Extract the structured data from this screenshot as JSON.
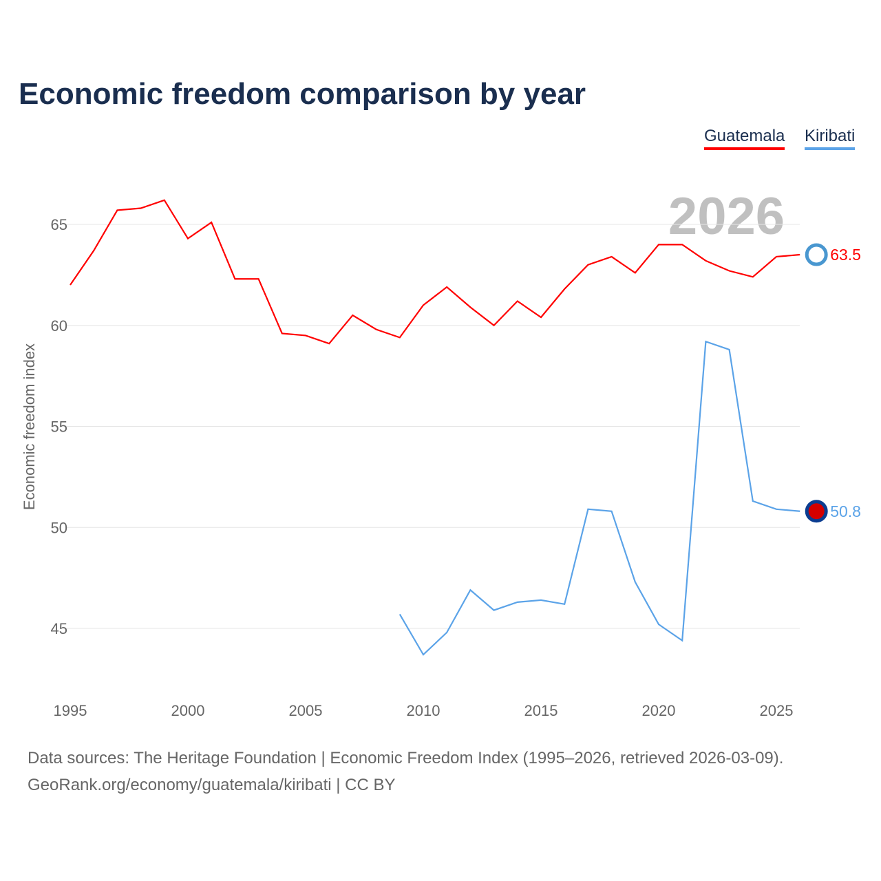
{
  "title": "Economic freedom comparison by year",
  "year_watermark": "2026",
  "legend": [
    {
      "label": "Guatemala",
      "color": "#ff0000"
    },
    {
      "label": "Kiribati",
      "color": "#5ba3e8"
    }
  ],
  "source_line1": "Data sources: The Heritage Foundation | Economic Freedom Index (1995–2026, retrieved 2026-03-09).",
  "source_line2": "GeoRank.org/economy/guatemala/kiribati | CC BY",
  "chart_data": {
    "type": "line",
    "title": "Economic freedom comparison by year",
    "xlabel": "",
    "ylabel": "Economic freedom index",
    "xlim": [
      1995,
      2026
    ],
    "ylim": [
      42,
      67
    ],
    "xticks": [
      1995,
      2000,
      2005,
      2010,
      2015,
      2020,
      2025
    ],
    "yticks": [
      45,
      50,
      55,
      60,
      65
    ],
    "grid": true,
    "legend_position": "top-right",
    "series": [
      {
        "name": "Guatemala",
        "color": "#ff0000",
        "end_label": "63.5",
        "x": [
          1995,
          1996,
          1997,
          1998,
          1999,
          2000,
          2001,
          2002,
          2003,
          2004,
          2005,
          2006,
          2007,
          2008,
          2009,
          2010,
          2011,
          2012,
          2013,
          2014,
          2015,
          2016,
          2017,
          2018,
          2019,
          2020,
          2021,
          2022,
          2023,
          2024,
          2025,
          2026
        ],
        "y": [
          62.0,
          63.7,
          65.7,
          65.8,
          66.2,
          64.3,
          65.1,
          62.3,
          62.3,
          59.6,
          59.5,
          59.1,
          60.5,
          59.8,
          59.4,
          61.0,
          61.9,
          60.9,
          60.0,
          61.2,
          60.4,
          61.8,
          63.0,
          63.4,
          62.6,
          64.0,
          64.0,
          63.2,
          62.7,
          62.4,
          63.4,
          63.5
        ]
      },
      {
        "name": "Kiribati",
        "color": "#5ba3e8",
        "end_label": "50.8",
        "x": [
          2009,
          2010,
          2011,
          2012,
          2013,
          2014,
          2015,
          2016,
          2017,
          2018,
          2019,
          2020,
          2021,
          2022,
          2023,
          2024,
          2025,
          2026
        ],
        "y": [
          45.7,
          43.7,
          44.8,
          46.9,
          45.9,
          46.3,
          46.4,
          46.2,
          50.9,
          50.8,
          47.3,
          45.2,
          44.4,
          59.2,
          58.8,
          51.3,
          50.9,
          50.8
        ]
      }
    ]
  }
}
